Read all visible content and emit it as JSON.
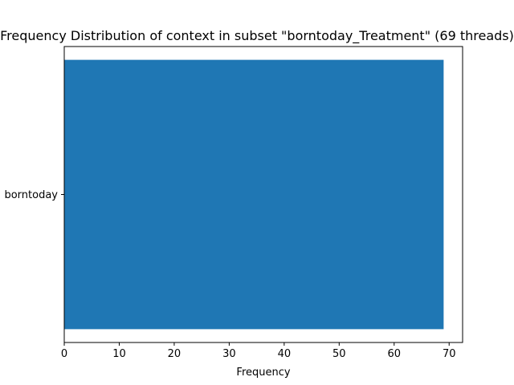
{
  "chart_data": {
    "type": "bar",
    "orientation": "horizontal",
    "title": "Frequency Distribution of context in subset \"borntoday_Treatment\" (69 threads)",
    "xlabel": "Frequency",
    "ylabel": "",
    "categories": [
      "borntoday"
    ],
    "values": [
      69
    ],
    "xlim": [
      0,
      72.45
    ],
    "xticks": [
      0,
      10,
      20,
      30,
      40,
      50,
      60,
      70
    ],
    "grid": false,
    "legend": "none",
    "bar_color": "#1f77b4"
  }
}
